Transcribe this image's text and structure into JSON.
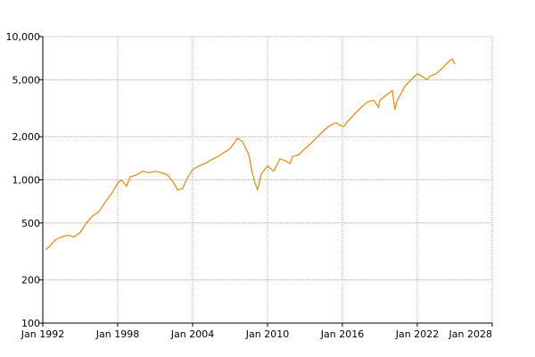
{
  "chart_data": {
    "type": "line",
    "title": "",
    "xlabel": "",
    "ylabel": "",
    "y_scale": "log",
    "xlim": [
      1992,
      2028
    ],
    "ylim": [
      100,
      10000
    ],
    "grid": true,
    "legend": "none",
    "line_color": "#e08a00",
    "grid_color": "#999999",
    "x_ticks": [
      {
        "value": 1992,
        "label": "Jan 1992"
      },
      {
        "value": 1998,
        "label": "Jan 1998"
      },
      {
        "value": 2004,
        "label": "Jan 2004"
      },
      {
        "value": 2010,
        "label": "Jan 2010"
      },
      {
        "value": 2016,
        "label": "Jan 2016"
      },
      {
        "value": 2022,
        "label": "Jan 2022"
      },
      {
        "value": 2028,
        "label": "Jan 2028"
      }
    ],
    "y_ticks": [
      {
        "value": 100,
        "label": "100"
      },
      {
        "value": 200,
        "label": "200"
      },
      {
        "value": 500,
        "label": "500"
      },
      {
        "value": 1000,
        "label": "1,000"
      },
      {
        "value": 2000,
        "label": "2,000"
      },
      {
        "value": 5000,
        "label": "5,000"
      },
      {
        "value": 10000,
        "label": "10,000"
      }
    ],
    "series": [
      {
        "x": [
          1992.2,
          1992.5,
          1993.0,
          1993.5,
          1994.0,
          1994.5,
          1995.0,
          1995.5,
          1996.0,
          1996.5,
          1997.0,
          1997.5,
          1998.0,
          1998.3,
          1998.7,
          1999.0,
          1999.5,
          2000.0,
          2000.5,
          2001.0,
          2001.5,
          2002.0,
          2002.5,
          2002.8,
          2003.2,
          2003.5,
          2004.0,
          2004.5,
          2005.0,
          2005.5,
          2006.0,
          2006.5,
          2007.0,
          2007.6,
          2008.0,
          2008.5,
          2008.8,
          2009.0,
          2009.2,
          2009.5,
          2010.0,
          2010.5,
          2011.0,
          2011.5,
          2011.8,
          2012.0,
          2012.5,
          2013.0,
          2013.5,
          2014.0,
          2014.5,
          2015.0,
          2015.5,
          2015.8,
          2016.1,
          2016.5,
          2017.0,
          2017.5,
          2018.0,
          2018.5,
          2018.9,
          2019.0,
          2019.5,
          2020.0,
          2020.2,
          2020.4,
          2020.7,
          2021.0,
          2021.5,
          2022.0,
          2022.5,
          2022.8,
          2023.0,
          2023.5,
          2024.0,
          2024.5,
          2024.8,
          2025.0
        ],
        "values": [
          325,
          340,
          380,
          400,
          410,
          400,
          430,
          500,
          560,
          600,
          700,
          800,
          950,
          1000,
          900,
          1050,
          1080,
          1150,
          1120,
          1150,
          1120,
          1080,
          950,
          850,
          870,
          1000,
          1180,
          1250,
          1300,
          1380,
          1450,
          1550,
          1650,
          1950,
          1850,
          1500,
          1100,
          950,
          850,
          1100,
          1250,
          1150,
          1400,
          1350,
          1300,
          1450,
          1500,
          1650,
          1800,
          2000,
          2200,
          2400,
          2500,
          2400,
          2350,
          2600,
          2900,
          3200,
          3500,
          3600,
          3200,
          3600,
          3900,
          4200,
          3100,
          3600,
          4000,
          4500,
          5000,
          5500,
          5200,
          5000,
          5300,
          5500,
          6000,
          6700,
          7000,
          6400
        ]
      }
    ]
  }
}
